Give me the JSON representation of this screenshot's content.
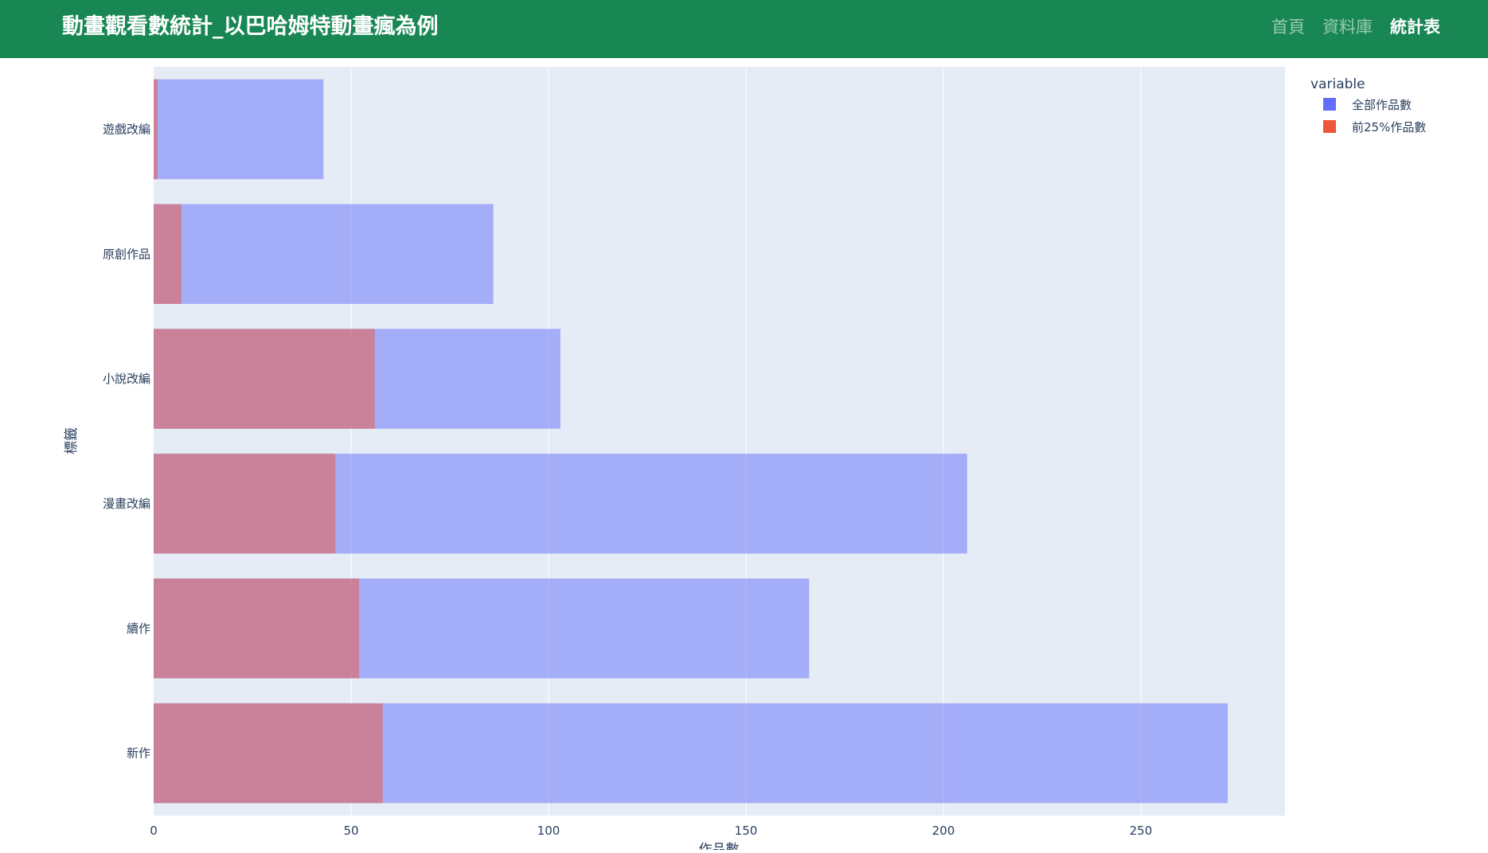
{
  "navbar": {
    "brand": "動畫觀看數統計_以巴哈姆特動畫瘋為例",
    "links": [
      {
        "label": "首頁",
        "active": false
      },
      {
        "label": "資料庫",
        "active": false
      },
      {
        "label": "統計表",
        "active": true
      }
    ]
  },
  "chart_data": {
    "type": "bar",
    "orientation": "horizontal",
    "barmode": "overlay",
    "categories": [
      "新作",
      "續作",
      "漫畫改編",
      "小說改編",
      "原創作品",
      "遊戲改編"
    ],
    "series": [
      {
        "name": "全部作品數",
        "color": "#636efa",
        "values": [
          272,
          166,
          206,
          103,
          86,
          43
        ]
      },
      {
        "name": "前25%作品數",
        "color": "#ef553b",
        "values": [
          58,
          52,
          46,
          56,
          7,
          1
        ]
      }
    ],
    "xlabel": "作品數",
    "ylabel": "標籤",
    "xlim": [
      0,
      286.5
    ],
    "xticks": [
      0,
      50,
      100,
      150,
      200,
      250
    ],
    "legend_title": "variable",
    "legend_position": "top-right",
    "grid": true,
    "plot_bg": "#e5ecf6"
  }
}
